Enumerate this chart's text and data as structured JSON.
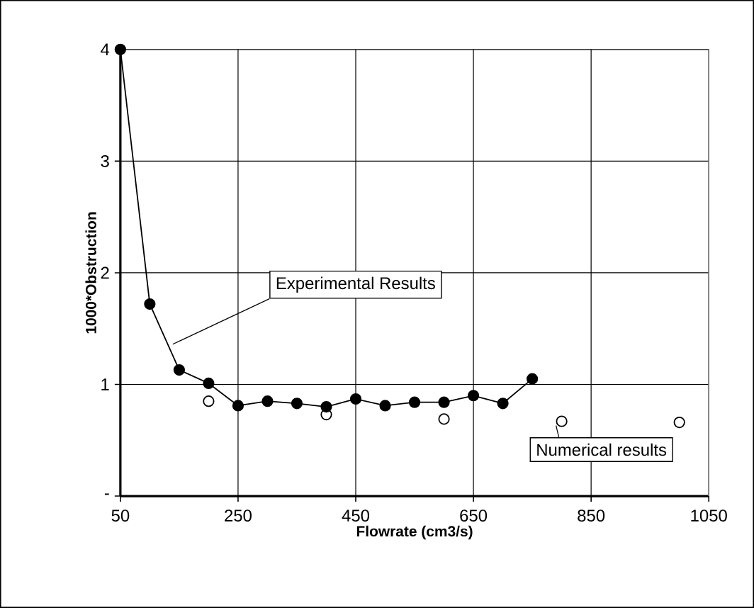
{
  "chart_data": {
    "type": "line",
    "xlabel": "Flowrate (cm3/s)",
    "ylabel": "1000*Obstruction",
    "series": [
      {
        "marker": "circle",
        "color": "#000000",
        "x": [
          50,
          100,
          150,
          200,
          250,
          300,
          350,
          400,
          450,
          500,
          550,
          600,
          650,
          700,
          750
        ],
        "values": [
          4.0,
          1.72,
          1.13,
          1.01,
          0.81,
          0.85,
          0.83,
          0.8,
          0.87,
          0.81,
          0.84,
          0.84,
          0.9,
          0.83,
          1.05
        ]
      },
      {
        "type": "scatter",
        "marker": "circle",
        "color": "#000000",
        "x": [
          200,
          400,
          600,
          800,
          1000
        ],
        "values": [
          0.85,
          0.73,
          0.69,
          0.67,
          0.66
        ]
      }
    ],
    "annotations": [
      {
        "text": "Experimental Results",
        "x": 139,
        "y": 1.36
      },
      {
        "text": "Numerical results",
        "x": 800,
        "y": 0.67
      }
    ],
    "xlim": [
      50,
      1050
    ],
    "xticks": [
      50,
      250,
      450,
      650,
      850,
      1050
    ],
    "ylim": [
      0,
      4
    ],
    "yticks": [
      {
        "value": 0,
        "label": "-"
      },
      1,
      2,
      3,
      4
    ],
    "grid": true
  }
}
